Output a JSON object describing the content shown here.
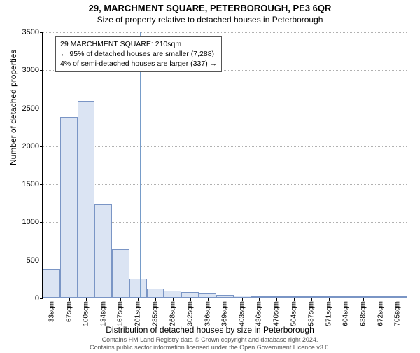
{
  "title_main": "29, MARCHMENT SQUARE, PETERBOROUGH, PE3 6QR",
  "title_sub": "Size of property relative to detached houses in Peterborough",
  "y_label": "Number of detached properties",
  "x_label": "Distribution of detached houses by size in Peterborough",
  "chart": {
    "type": "histogram",
    "ylim": [
      0,
      3500
    ],
    "ytick_step": 500,
    "yticks": [
      0,
      500,
      1000,
      1500,
      2000,
      2500,
      3000,
      3500
    ],
    "x_sqm_min": 16,
    "x_sqm_max": 722,
    "x_tick_sqm": [
      33,
      67,
      100,
      134,
      167,
      201,
      235,
      268,
      302,
      336,
      369,
      403,
      436,
      470,
      504,
      537,
      571,
      604,
      638,
      672,
      705
    ],
    "bars": [
      {
        "x0": 16,
        "x1": 50,
        "v": 380
      },
      {
        "x0": 50,
        "x1": 84,
        "v": 2380
      },
      {
        "x0": 84,
        "x1": 117,
        "v": 2590
      },
      {
        "x0": 117,
        "x1": 151,
        "v": 1230
      },
      {
        "x0": 151,
        "x1": 184,
        "v": 640
      },
      {
        "x0": 184,
        "x1": 218,
        "v": 250
      },
      {
        "x0": 218,
        "x1": 251,
        "v": 120
      },
      {
        "x0": 251,
        "x1": 285,
        "v": 90
      },
      {
        "x0": 285,
        "x1": 319,
        "v": 70
      },
      {
        "x0": 319,
        "x1": 353,
        "v": 55
      },
      {
        "x0": 353,
        "x1": 386,
        "v": 40
      },
      {
        "x0": 386,
        "x1": 420,
        "v": 30
      },
      {
        "x0": 420,
        "x1": 453,
        "v": 15
      },
      {
        "x0": 453,
        "x1": 487,
        "v": 12
      },
      {
        "x0": 487,
        "x1": 521,
        "v": 10
      },
      {
        "x0": 521,
        "x1": 554,
        "v": 8
      },
      {
        "x0": 554,
        "x1": 588,
        "v": 6
      },
      {
        "x0": 588,
        "x1": 621,
        "v": 5
      },
      {
        "x0": 621,
        "x1": 655,
        "v": 4
      },
      {
        "x0": 655,
        "x1": 689,
        "v": 3
      },
      {
        "x0": 689,
        "x1": 722,
        "v": 3
      }
    ],
    "bar_fill": "#dbe4f3",
    "bar_stroke": "#7a95c5",
    "grid_color": "#b0b0b0",
    "background_color": "#ffffff",
    "marker_sqm": 210,
    "marker_color": "#cc3333",
    "marker_left_color": "#769cc9"
  },
  "annotation": {
    "line1": "29 MARCHMENT SQUARE: 210sqm",
    "line2": "← 95% of detached houses are smaller (7,288)",
    "line3": "4% of semi-detached houses are larger (337) →"
  },
  "footer": {
    "line1": "Contains HM Land Registry data © Crown copyright and database right 2024.",
    "line2": "Contains public sector information licensed under the Open Government Licence v3.0."
  }
}
